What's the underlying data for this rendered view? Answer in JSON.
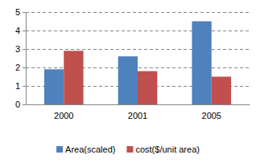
{
  "chart_data": {
    "type": "bar",
    "categories": [
      "2000",
      "2001",
      "2005"
    ],
    "series": [
      {
        "name": "Area(scaled)",
        "color": "#4f81bd",
        "values": [
          1.9,
          2.6,
          4.5
        ]
      },
      {
        "name": "cost($/unit area)",
        "color": "#c0504d",
        "values": [
          2.9,
          1.8,
          1.5
        ]
      }
    ],
    "ylim": [
      0,
      5
    ],
    "yticks": [
      0,
      1,
      2,
      3,
      4,
      5
    ],
    "grid": true,
    "legend": "bottom"
  }
}
